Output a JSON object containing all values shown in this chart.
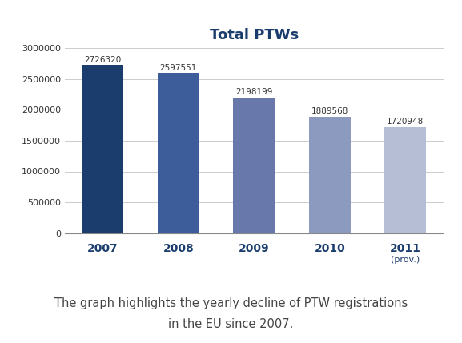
{
  "title": "Total PTWs",
  "categories": [
    "2007",
    "2008",
    "2009",
    "2010",
    "2011"
  ],
  "x_last_label": "(prov.)",
  "values": [
    2726320,
    2597551,
    2198199,
    1889568,
    1720948
  ],
  "bar_colors": [
    "#1b3d6e",
    "#3d5d9a",
    "#6878aa",
    "#8d9abf",
    "#b5bed4"
  ],
  "ylim": [
    0,
    3000000
  ],
  "yticks": [
    0,
    500000,
    1000000,
    1500000,
    2000000,
    2500000,
    3000000
  ],
  "ytick_labels": [
    "0",
    "500000",
    "1000000",
    "1500000",
    "2000000",
    "2500000",
    "3000000"
  ],
  "caption_line1": "The graph highlights the yearly decline of PTW registrations",
  "caption_line2": "in the EU since 2007.",
  "background_color": "#ffffff",
  "title_color": "#1b3d6e",
  "title_fontsize": 13,
  "ytick_fontsize": 8,
  "caption_fontsize": 10.5,
  "xtick_fontsize": 10,
  "xtick_prov_fontsize": 8,
  "bar_label_fontsize": 7.5,
  "bar_label_color": "#333333",
  "grid_color": "#cccccc",
  "spine_color": "#888888"
}
